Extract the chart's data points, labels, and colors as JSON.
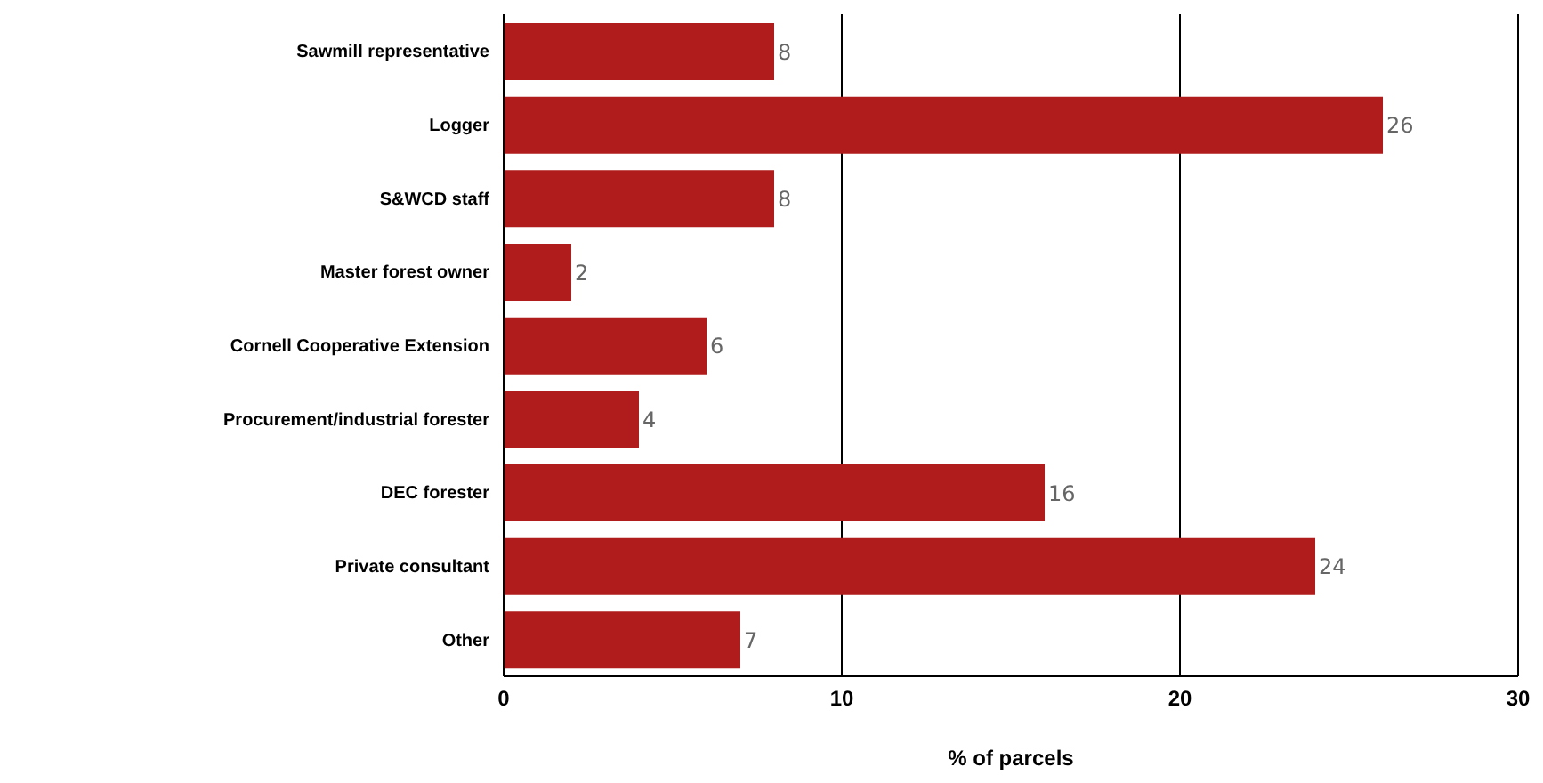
{
  "chart_data": {
    "type": "bar",
    "orientation": "horizontal",
    "xlabel": "% of parcels",
    "categories": [
      "Sawmill representative",
      "Logger",
      "S&WCD staff",
      "Master forest owner",
      "Cornell Cooperative Extension",
      "Procurement/industrial forester",
      "DEC forester",
      "Private consultant",
      "Other"
    ],
    "values": [
      8,
      26,
      8,
      2,
      6,
      4,
      16,
      24,
      7
    ],
    "color": "#b01c1c",
    "xlim": [
      0,
      30
    ],
    "xticks": [
      0,
      10,
      20,
      30
    ],
    "grid": "x",
    "data_labels": true
  }
}
